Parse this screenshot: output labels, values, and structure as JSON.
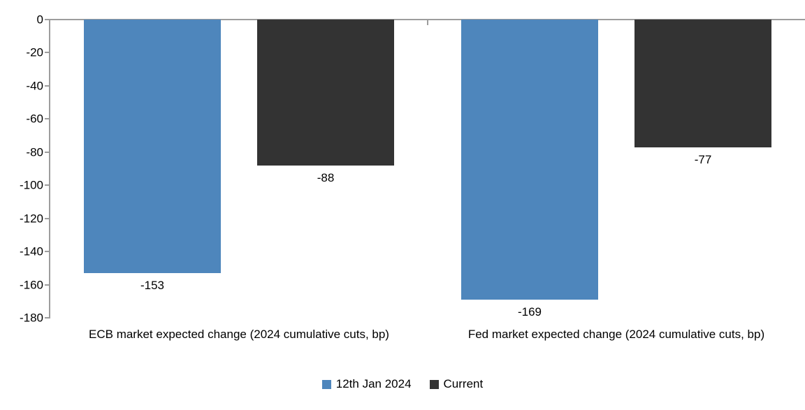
{
  "chart_data": {
    "type": "bar",
    "title": "",
    "xlabel": "",
    "ylabel": "",
    "categories": [
      "ECB market expected change (2024 cumulative cuts, bp)",
      "Fed market expected change (2024 cumulative cuts, bp)"
    ],
    "series": [
      {
        "name": "12th Jan 2024",
        "color": "#4e86bc",
        "values": [
          -153,
          -169
        ]
      },
      {
        "name": "Current",
        "color": "#333333",
        "values": [
          -88,
          -77
        ]
      }
    ],
    "ylim": [
      -180,
      0
    ],
    "yticks": [
      0,
      -20,
      -40,
      -60,
      -80,
      -100,
      -120,
      -140,
      -160,
      -180
    ],
    "grid": false,
    "data_labels": true,
    "legend_position": "bottom",
    "axis_color": "#9d9d9d",
    "background_color": "#ffffff"
  }
}
